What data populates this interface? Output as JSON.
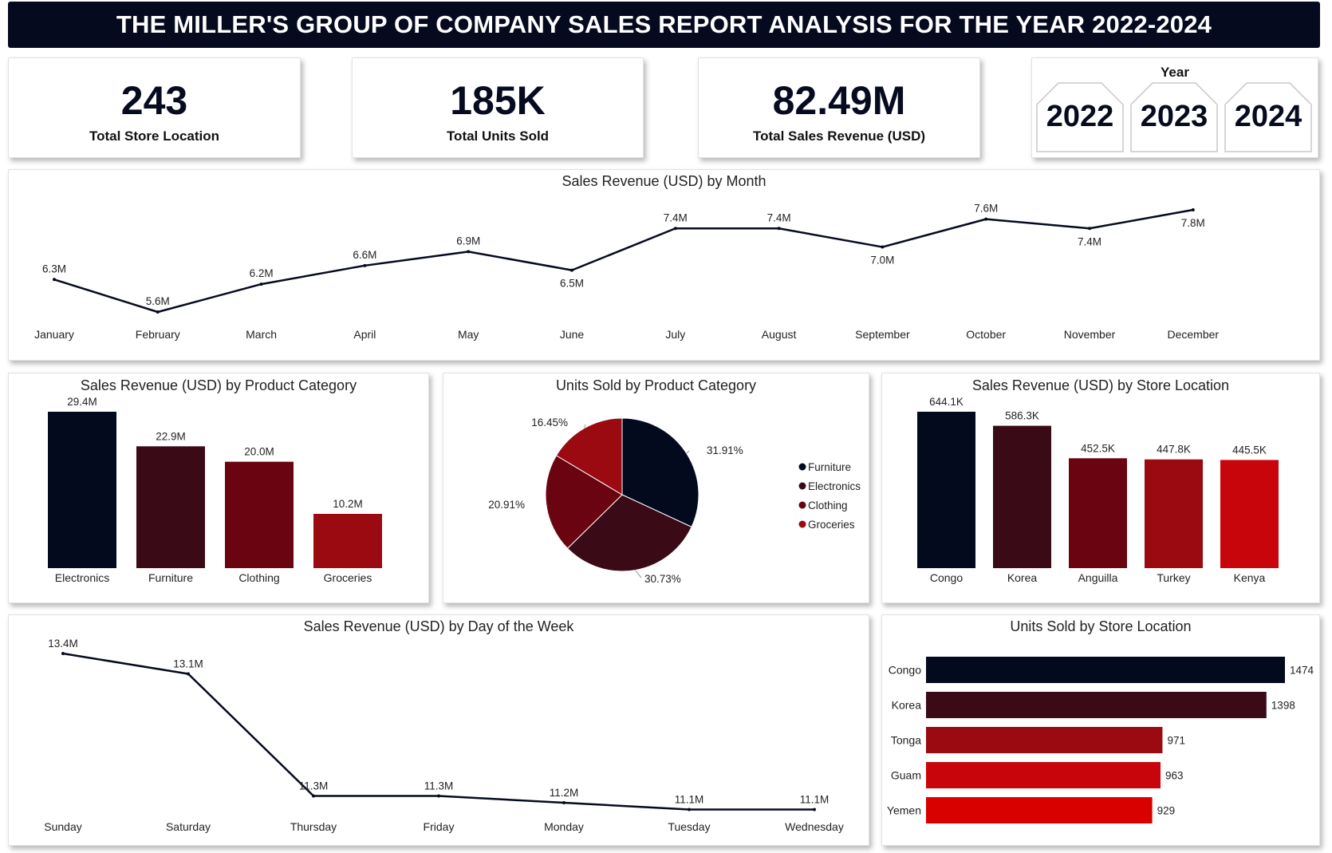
{
  "header": {
    "title": "THE MILLER'S GROUP OF COMPANY SALES REPORT ANALYSIS FOR THE YEAR 2022-2024"
  },
  "kpis": [
    {
      "value": "243",
      "label": "Total Store Location"
    },
    {
      "value": "185K",
      "label": "Total Units Sold"
    },
    {
      "value": "82.49M",
      "label": "Total Sales Revenue (USD)"
    }
  ],
  "year_slicer": {
    "title": "Year",
    "options": [
      "2022",
      "2023",
      "2024"
    ]
  },
  "colors": {
    "navy": "#040a1e",
    "c2": "#3a0a17",
    "c3": "#6a0410",
    "c4": "#9a0a10",
    "c5": "#c9050c",
    "c6": "#d90000"
  },
  "chart_data": [
    {
      "id": "monthly",
      "type": "line",
      "title": "Sales Revenue (USD) by Month",
      "categories": [
        "January",
        "February",
        "March",
        "April",
        "May",
        "June",
        "July",
        "August",
        "September",
        "October",
        "November",
        "December"
      ],
      "values": [
        6.3,
        5.6,
        6.2,
        6.6,
        6.9,
        6.5,
        7.4,
        7.4,
        7.0,
        7.6,
        7.4,
        7.8
      ],
      "labels": [
        "6.3M",
        "5.6M",
        "6.2M",
        "6.6M",
        "6.9M",
        "6.5M",
        "7.4M",
        "7.4M",
        "7.0M",
        "7.6M",
        "7.4M",
        "7.8M"
      ],
      "unit": "M"
    },
    {
      "id": "category_revenue",
      "type": "bar",
      "title": "Sales Revenue (USD) by Product Category",
      "categories": [
        "Electronics",
        "Furniture",
        "Clothing",
        "Groceries"
      ],
      "values": [
        29.4,
        22.9,
        20.0,
        10.2
      ],
      "labels": [
        "29.4M",
        "22.9M",
        "20.0M",
        "10.2M"
      ]
    },
    {
      "id": "category_units",
      "type": "pie",
      "title": "Units Sold by Product Category",
      "categories": [
        "Furniture",
        "Electronics",
        "Clothing",
        "Groceries"
      ],
      "values": [
        31.91,
        30.73,
        20.91,
        16.45
      ],
      "labels": [
        "31.91%",
        "30.73%",
        "20.91%",
        "16.45%"
      ],
      "legend": "right"
    },
    {
      "id": "location_revenue",
      "type": "bar",
      "title": "Sales Revenue (USD) by Store Location",
      "categories": [
        "Congo",
        "Korea",
        "Anguilla",
        "Turkey",
        "Kenya"
      ],
      "values": [
        644.1,
        586.3,
        452.5,
        447.8,
        445.5
      ],
      "labels": [
        "644.1K",
        "586.3K",
        "452.5K",
        "447.8K",
        "445.5K"
      ]
    },
    {
      "id": "weekday",
      "type": "line",
      "title": "Sales Revenue (USD) by Day of the Week",
      "categories": [
        "Sunday",
        "Saturday",
        "Thursday",
        "Friday",
        "Monday",
        "Tuesday",
        "Wednesday"
      ],
      "values": [
        13.4,
        13.1,
        11.3,
        11.3,
        11.2,
        11.1,
        11.1
      ],
      "labels": [
        "13.4M",
        "13.1M",
        "11.3M",
        "11.3M",
        "11.2M",
        "11.1M",
        "11.1M"
      ]
    },
    {
      "id": "location_units",
      "type": "bar",
      "orientation": "horizontal",
      "title": "Units Sold by Store Location",
      "categories": [
        "Congo",
        "Korea",
        "Tonga",
        "Guam",
        "Yemen"
      ],
      "values": [
        1474,
        1398,
        971,
        963,
        929
      ],
      "labels": [
        "1474",
        "1398",
        "971",
        "963",
        "929"
      ]
    }
  ]
}
